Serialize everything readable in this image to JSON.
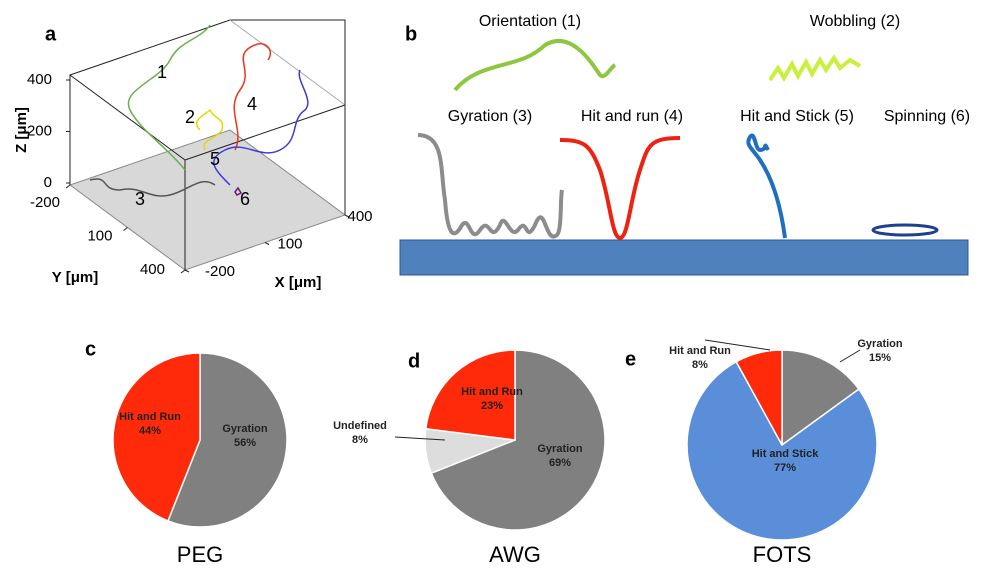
{
  "chart_data": [
    {
      "type": "trajectory3d",
      "panel": "a",
      "xlabel": "X [μm]",
      "ylabel": "Y [μm]",
      "zlabel": "Z [μm]",
      "xlim": [
        -200,
        400
      ],
      "xticks": [
        -200,
        100,
        400
      ],
      "ylim": [
        -200,
        400
      ],
      "yticks": [
        -200,
        100,
        400
      ],
      "zlim": [
        0,
        400
      ],
      "zticks": [
        0,
        200,
        400
      ],
      "trajectories": [
        {
          "label": "1",
          "color": "#6ab04c"
        },
        {
          "label": "2",
          "color": "#e5d800"
        },
        {
          "label": "3",
          "color": "#555555"
        },
        {
          "label": "4",
          "color": "#e8361e"
        },
        {
          "label": "5",
          "color": "#3b3bdb"
        },
        {
          "label": "6",
          "color": "#6a1b7a"
        }
      ]
    },
    {
      "type": "schematic",
      "panel": "b",
      "modes": [
        {
          "label": "Orientation (1)",
          "color": "#8dc63f"
        },
        {
          "label": "Wobbling (2)",
          "color": "#c8f03c"
        },
        {
          "label": "Gyration (3)",
          "color": "#8c8c8c"
        },
        {
          "label": "Hit and run (4)",
          "color": "#ee2211"
        },
        {
          "label": "Hit and Stick (5)",
          "color": "#1f6fc0"
        },
        {
          "label": "Spinning (6)",
          "color": "#1f3f8f"
        }
      ]
    },
    {
      "type": "pie",
      "panel": "c",
      "caption": "PEG",
      "categories": [
        "Gyration",
        "Hit and Run"
      ],
      "values": [
        56,
        44
      ],
      "value_labels": [
        "56%",
        "44%"
      ],
      "colors": [
        "#808080",
        "#ff2a0a"
      ]
    },
    {
      "type": "pie",
      "panel": "d",
      "caption": "AWG",
      "categories": [
        "Gyration",
        "Undefined",
        "Hit and Run"
      ],
      "values": [
        69,
        8,
        23
      ],
      "value_labels": [
        "69%",
        "8%",
        "23%"
      ],
      "colors": [
        "#808080",
        "#dddddd",
        "#ff2a0a"
      ]
    },
    {
      "type": "pie",
      "panel": "e",
      "caption": "FOTS",
      "categories": [
        "Gyration",
        "Hit and Stick",
        "Hit and Run"
      ],
      "values": [
        15,
        77,
        8
      ],
      "value_labels": [
        "15%",
        "77%",
        "8%"
      ],
      "colors": [
        "#808080",
        "#5a8ed8",
        "#ff2a0a"
      ]
    }
  ]
}
